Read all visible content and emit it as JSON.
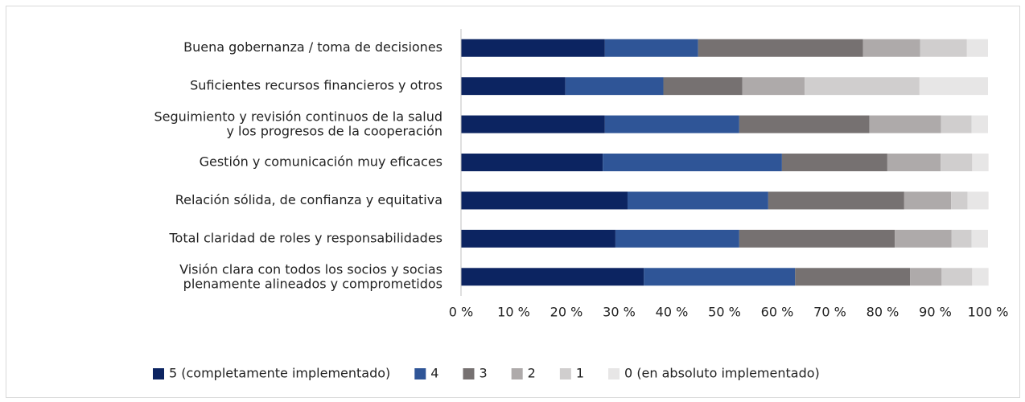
{
  "chart_data": {
    "type": "stacked_bar_horizontal",
    "categories": [
      "Buena gobernanza / toma de decisiones",
      "Suficientes recursos financieros y otros",
      "Seguimiento y revisión continuos de la salud\ny los progresos de la cooperación",
      "Gestión y comunicación muy eficaces",
      "Relación sólida, de confianza y equitativa",
      "Total claridad de roles y responsabilidades",
      "Visión clara con todos los socios y socias\nplenamente alineados y comprometidos"
    ],
    "series": [
      {
        "name": "5 (completamente implementado)",
        "color": "#0c2461",
        "values": [
          27.3,
          19.8,
          27.3,
          26.9,
          31.6,
          29.3,
          34.7
        ]
      },
      {
        "name": "4",
        "color": "#2f5597",
        "values": [
          17.7,
          18.6,
          25.5,
          34.0,
          26.7,
          23.5,
          28.7
        ]
      },
      {
        "name": "3",
        "color": "#767171",
        "values": [
          31.3,
          15.0,
          24.7,
          20.0,
          25.8,
          29.5,
          21.8
        ]
      },
      {
        "name": "2",
        "color": "#aeaaaa",
        "values": [
          10.8,
          11.8,
          13.6,
          10.1,
          8.9,
          10.8,
          6.0
        ]
      },
      {
        "name": "1",
        "color": "#d0cece",
        "values": [
          8.9,
          21.8,
          5.8,
          6.0,
          3.1,
          3.8,
          5.8
        ]
      },
      {
        "name": "0 (en absoluto implementado)",
        "color": "#e7e6e6",
        "values": [
          4.0,
          13.0,
          3.1,
          3.1,
          4.0,
          3.1,
          3.1
        ]
      }
    ],
    "xlim": [
      0,
      100
    ],
    "xticks": [
      {
        "value": 0,
        "label": "0 %"
      },
      {
        "value": 10,
        "label": "10 %"
      },
      {
        "value": 20,
        "label": "20 %"
      },
      {
        "value": 30,
        "label": "30 %"
      },
      {
        "value": 40,
        "label": "40 %"
      },
      {
        "value": 50,
        "label": "50 %"
      },
      {
        "value": 60,
        "label": "60 %"
      },
      {
        "value": 70,
        "label": "70 %"
      },
      {
        "value": 80,
        "label": "80 %"
      },
      {
        "value": 90,
        "label": "90 %"
      },
      {
        "value": 100,
        "label": "100 %"
      }
    ],
    "legend": "bottom"
  }
}
